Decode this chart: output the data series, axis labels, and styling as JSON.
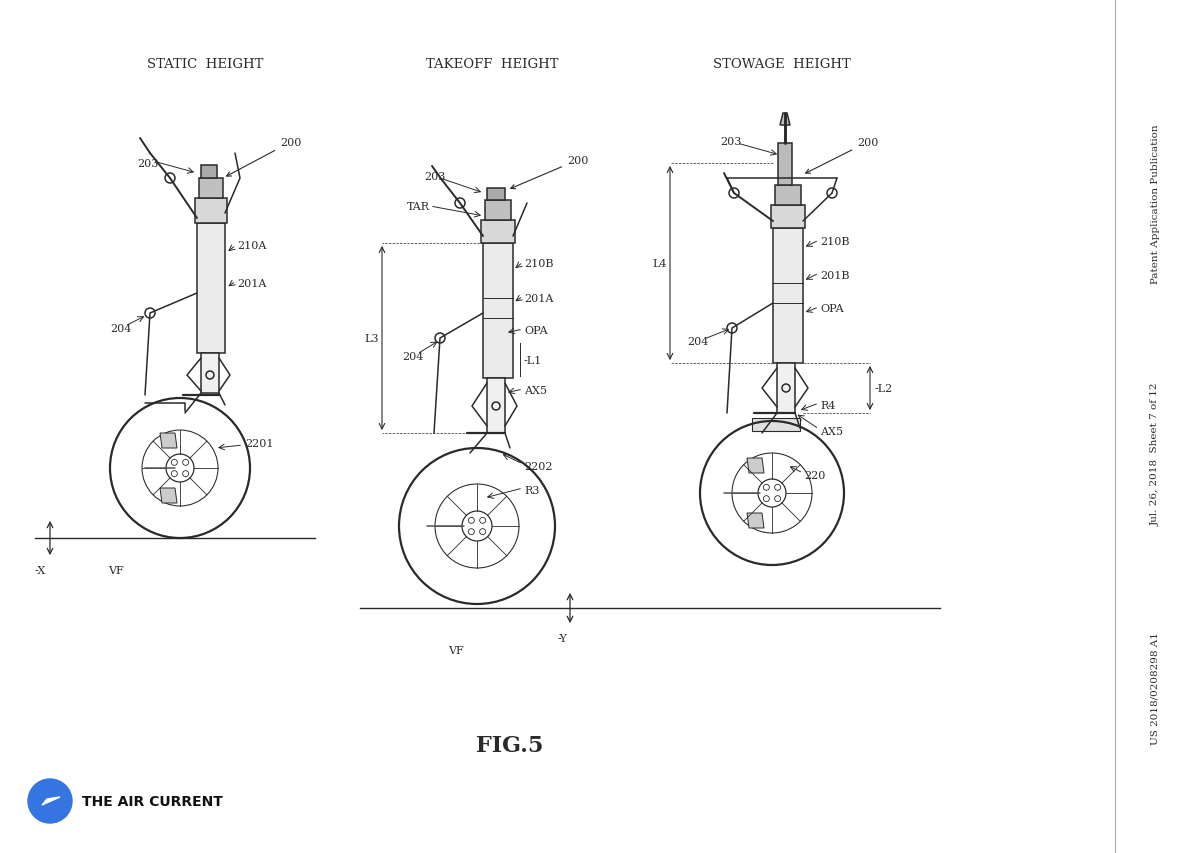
{
  "bg_color": "#ffffff",
  "title_fig": "FIG.5",
  "sidebar_line1": "Patent Application Publication",
  "sidebar_line2": "Jul. 26, 2018  Sheet 7 of 12",
  "sidebar_line3": "US 2018/0208298 A1",
  "brand_text": "THE AIR CURRENT",
  "brand_color": "#3575e2",
  "col1_title": "STATIC  HEIGHT",
  "col2_title": "TAKEOFF  HEIGHT",
  "col3_title": "STOWAGE  HEIGHT",
  "fig_width": 11.9,
  "fig_height": 8.54,
  "label_fontsize": 8,
  "col_title_fontsize": 9.5,
  "fig_label_fontsize": 16,
  "line_color": "#2a2a2a",
  "light_fill": "#d8d8d8",
  "mid_fill": "#c0c0c0"
}
